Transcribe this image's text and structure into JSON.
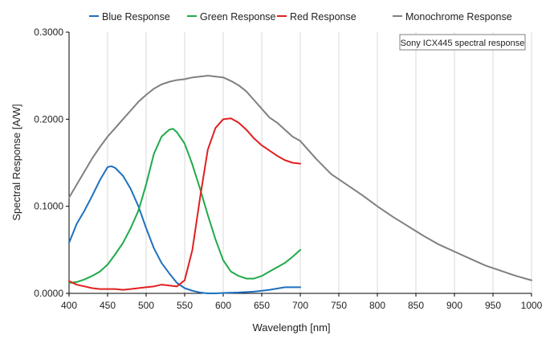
{
  "chart_data": {
    "type": "line",
    "xlabel": "Wavelength [nm]",
    "ylabel": "Spectral Response [A/W]",
    "xlim": [
      400,
      1000
    ],
    "ylim": [
      0,
      0.3
    ],
    "x_ticks": [
      400,
      450,
      500,
      550,
      600,
      650,
      700,
      750,
      800,
      850,
      900,
      950,
      1000
    ],
    "y_ticks": [
      0,
      0.1,
      0.2,
      0.3
    ],
    "x_tick_labels": [
      "400",
      "450",
      "500",
      "550",
      "600",
      "650",
      "700",
      "750",
      "800",
      "850",
      "900",
      "950",
      "1000"
    ],
    "y_tick_labels": [
      "0.0000",
      "0.1000",
      "0.2000",
      "0.3000"
    ],
    "grid": "vertical",
    "legend_position": "top",
    "annotation": "Sony ICX445 spectral response",
    "series": [
      {
        "name": "Blue Response",
        "color": "#1f6fbf",
        "x": [
          400,
          410,
          420,
          430,
          440,
          450,
          455,
          460,
          470,
          480,
          490,
          500,
          510,
          520,
          530,
          540,
          550,
          560,
          570,
          580,
          590,
          600,
          620,
          640,
          660,
          680,
          700
        ],
        "y": [
          0.058,
          0.08,
          0.095,
          0.112,
          0.13,
          0.145,
          0.146,
          0.144,
          0.135,
          0.12,
          0.1,
          0.075,
          0.052,
          0.035,
          0.023,
          0.012,
          0.006,
          0.003,
          0.001,
          0.0,
          0.0,
          0.0005,
          0.001,
          0.002,
          0.004,
          0.007,
          0.007
        ]
      },
      {
        "name": "Green Response",
        "color": "#1faa4a",
        "x": [
          400,
          410,
          420,
          430,
          440,
          450,
          460,
          470,
          480,
          490,
          500,
          510,
          520,
          530,
          535,
          540,
          550,
          560,
          570,
          580,
          590,
          600,
          610,
          620,
          630,
          640,
          650,
          660,
          670,
          680,
          690,
          700
        ],
        "y": [
          0.012,
          0.013,
          0.016,
          0.02,
          0.025,
          0.033,
          0.045,
          0.058,
          0.075,
          0.095,
          0.125,
          0.16,
          0.18,
          0.188,
          0.189,
          0.185,
          0.172,
          0.148,
          0.12,
          0.09,
          0.062,
          0.038,
          0.025,
          0.02,
          0.017,
          0.017,
          0.02,
          0.025,
          0.03,
          0.035,
          0.042,
          0.05
        ]
      },
      {
        "name": "Red Response",
        "color": "#e02020",
        "x": [
          400,
          410,
          420,
          430,
          440,
          450,
          460,
          470,
          480,
          490,
          500,
          510,
          520,
          530,
          540,
          550,
          560,
          570,
          580,
          590,
          600,
          610,
          620,
          630,
          640,
          650,
          660,
          670,
          680,
          690,
          700
        ],
        "y": [
          0.014,
          0.01,
          0.008,
          0.006,
          0.005,
          0.005,
          0.005,
          0.004,
          0.005,
          0.006,
          0.007,
          0.008,
          0.01,
          0.009,
          0.008,
          0.015,
          0.05,
          0.11,
          0.165,
          0.19,
          0.2,
          0.201,
          0.196,
          0.188,
          0.178,
          0.17,
          0.164,
          0.158,
          0.153,
          0.15,
          0.149
        ]
      },
      {
        "name": "Monochrome Response",
        "color": "#808080",
        "x": [
          400,
          410,
          420,
          430,
          440,
          450,
          460,
          470,
          480,
          490,
          500,
          510,
          520,
          530,
          540,
          550,
          560,
          570,
          580,
          590,
          600,
          610,
          620,
          630,
          640,
          650,
          660,
          670,
          680,
          690,
          700,
          720,
          740,
          760,
          780,
          800,
          820,
          840,
          860,
          880,
          900,
          920,
          940,
          960,
          980,
          1000
        ],
        "y": [
          0.11,
          0.125,
          0.14,
          0.155,
          0.168,
          0.18,
          0.19,
          0.2,
          0.21,
          0.22,
          0.228,
          0.235,
          0.24,
          0.243,
          0.245,
          0.246,
          0.248,
          0.249,
          0.25,
          0.249,
          0.248,
          0.244,
          0.239,
          0.232,
          0.222,
          0.212,
          0.202,
          0.196,
          0.188,
          0.18,
          0.175,
          0.155,
          0.137,
          0.125,
          0.113,
          0.1,
          0.088,
          0.077,
          0.066,
          0.056,
          0.048,
          0.04,
          0.032,
          0.026,
          0.02,
          0.015
        ]
      }
    ]
  }
}
